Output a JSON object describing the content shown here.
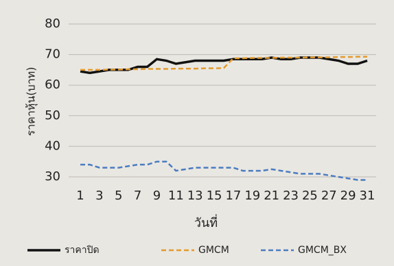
{
  "chart_data": {
    "type": "line",
    "x": [
      1,
      2,
      3,
      4,
      5,
      6,
      7,
      8,
      9,
      10,
      11,
      12,
      13,
      14,
      15,
      16,
      17,
      18,
      19,
      20,
      21,
      22,
      23,
      24,
      25,
      26,
      27,
      28,
      29,
      30,
      31
    ],
    "xlim": [
      1,
      31
    ],
    "xticks": [
      1,
      3,
      5,
      7,
      9,
      11,
      13,
      15,
      17,
      19,
      21,
      23,
      25,
      27,
      29,
      31
    ],
    "ylim": [
      30,
      80
    ],
    "yticks": [
      30,
      40,
      50,
      60,
      70,
      80
    ],
    "grid": true,
    "xlabel": "วันที่",
    "ylabel": "ราคาหุ้น(บาท)",
    "legend": "bottom",
    "series": [
      {
        "name": "ราคาปิด",
        "color": "#111111",
        "dash": false,
        "values": [
          64.5,
          64,
          64.5,
          65,
          65,
          65,
          66,
          66,
          68.5,
          68,
          67,
          67.5,
          68,
          68,
          68,
          68,
          68.5,
          68.5,
          68.5,
          68.5,
          69,
          68.5,
          68.5,
          69,
          69,
          69,
          68.5,
          68,
          67,
          67,
          68
        ]
      },
      {
        "name": "GMCM",
        "color": "#e39a2c",
        "dash": true,
        "values": [
          65,
          65,
          65,
          65.1,
          65.1,
          65.2,
          65.2,
          65.3,
          65.3,
          65.3,
          65.4,
          65.4,
          65.4,
          65.5,
          65.5,
          65.6,
          68.8,
          68.8,
          68.9,
          68.9,
          68.9,
          69,
          69,
          69,
          69.1,
          69.1,
          69.1,
          69.2,
          69.2,
          69.3,
          69.3
        ]
      },
      {
        "name": "GMCM_BX",
        "color": "#4a7cc0",
        "dash": true,
        "values": [
          34,
          34,
          33,
          33,
          33,
          33.5,
          34,
          34,
          35,
          35,
          32,
          32.5,
          33,
          33,
          33,
          33,
          33,
          32,
          32,
          32,
          32.5,
          32,
          31.5,
          31,
          31,
          31,
          30.5,
          30,
          29.5,
          29,
          29
        ]
      }
    ]
  }
}
